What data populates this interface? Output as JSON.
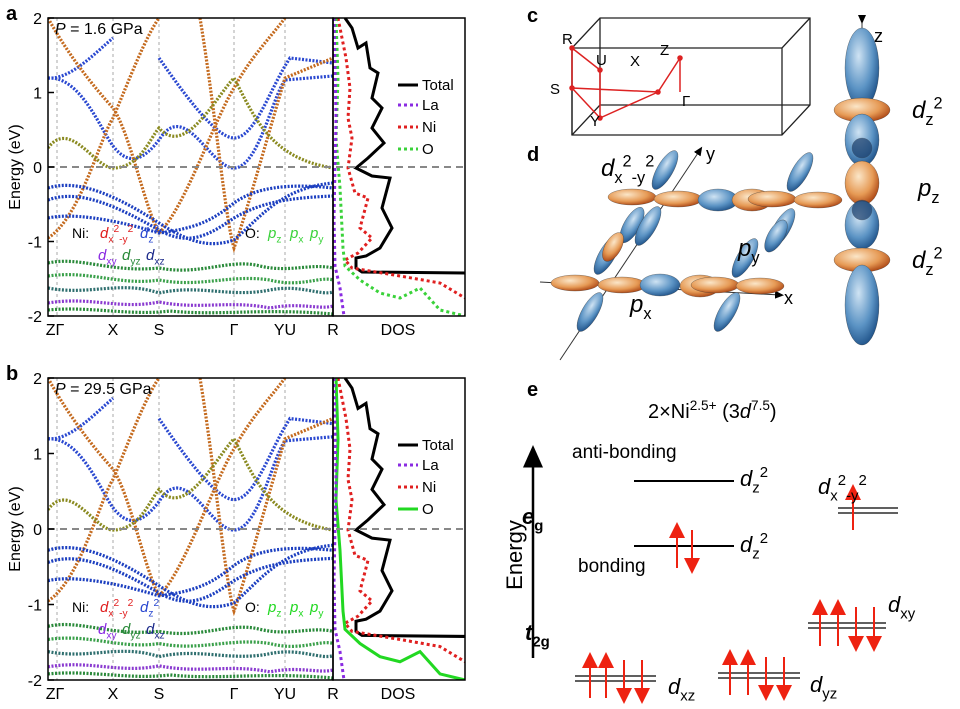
{
  "panels": {
    "a": {
      "label": "a",
      "pressure_symbol": "P",
      "pressure": " = 1.6 GPa",
      "y_axis_label": "Energy (eV)",
      "ylim": [
        -2,
        2
      ],
      "yticks": [
        -2,
        -1,
        0,
        1,
        2
      ],
      "k_points": [
        "ZΓ",
        "X",
        "S",
        "Γ",
        "YU",
        "R"
      ],
      "dos_label": "DOS",
      "legend": [
        "Total",
        "La",
        "Ni",
        "O"
      ],
      "ni": {
        "prefix": "Ni:",
        "dx2y2": [
          "d",
          "x",
          "2",
          "-y",
          "2"
        ],
        "dz2": [
          "d",
          "z",
          "2"
        ],
        "dxy": [
          "d",
          "xy"
        ],
        "dyz": [
          "d",
          "yz"
        ],
        "dxz": [
          "d",
          "xz"
        ]
      },
      "o": {
        "prefix": "O:",
        "pz": [
          "p",
          "z"
        ],
        "px": [
          "p",
          "x"
        ],
        "py": [
          "p",
          "y"
        ]
      }
    },
    "b": {
      "label": "b",
      "pressure_symbol": "P",
      "pressure": " = 29.5 GPa",
      "y_axis_label": "Energy (eV)",
      "ylim": [
        -2,
        2
      ],
      "yticks": [
        -2,
        -1,
        0,
        1,
        2
      ],
      "k_points": [
        "ZΓ",
        "X",
        "S",
        "Γ",
        "YU",
        "R"
      ],
      "dos_label": "DOS",
      "legend": [
        "Total",
        "La",
        "Ni",
        "O"
      ],
      "ni": {
        "prefix": "Ni:",
        "dx2y2": [
          "d",
          "x",
          "2",
          "-y",
          "2"
        ],
        "dz2": [
          "d",
          "z",
          "2"
        ],
        "dxy": [
          "d",
          "xy"
        ],
        "dyz": [
          "d",
          "yz"
        ],
        "dxz": [
          "d",
          "xz"
        ]
      },
      "o": {
        "prefix": "O:",
        "pz": [
          "p",
          "z"
        ],
        "px": [
          "p",
          "x"
        ],
        "py": [
          "p",
          "y"
        ]
      }
    },
    "c": {
      "label": "c",
      "points": {
        "R": "R",
        "U": "U",
        "X": "X",
        "Z": "Z",
        "S": "S",
        "G": "Γ",
        "Y": "Y"
      }
    },
    "d": {
      "label": "d",
      "axis_x": "x",
      "axis_y": "y",
      "axis_z": "z",
      "dx2y2": [
        "d",
        "x",
        "2",
        "-y",
        "2"
      ],
      "px": [
        "p",
        "x"
      ],
      "py": [
        "p",
        "y"
      ],
      "pz": [
        "p",
        "z"
      ],
      "dz2_top": [
        "d",
        "z",
        "2"
      ],
      "dz2_bottom": [
        "d",
        "z",
        "2"
      ]
    },
    "e": {
      "label": "e",
      "title": [
        "2×Ni",
        "2.5+",
        " (3",
        "d",
        "7.5",
        ")"
      ],
      "energy": "Energy",
      "anti_bonding": "anti-bonding",
      "bonding": "bonding",
      "eg": [
        "e",
        "g"
      ],
      "t2g": [
        "t",
        "2g"
      ],
      "dz2_anti": [
        "d",
        "z",
        "2"
      ],
      "dz2_bond": [
        "d",
        "z",
        "2"
      ],
      "dx2y2": [
        "d",
        "x",
        "2",
        "-y",
        "2"
      ],
      "dxy": [
        "d",
        "xy"
      ],
      "dxz": [
        "d",
        "xz"
      ],
      "dyz": [
        "d",
        "yz"
      ]
    }
  }
}
